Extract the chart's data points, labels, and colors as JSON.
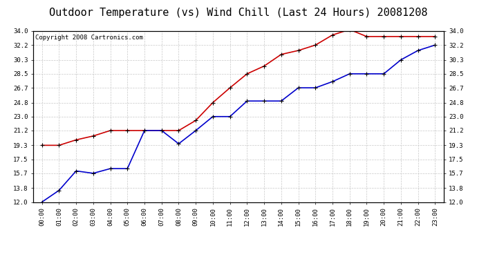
{
  "title": "Outdoor Temperature (vs) Wind Chill (Last 24 Hours) 20081208",
  "copyright": "Copyright 2008 Cartronics.com",
  "x_labels": [
    "00:00",
    "01:00",
    "02:00",
    "03:00",
    "04:00",
    "05:00",
    "06:00",
    "07:00",
    "08:00",
    "09:00",
    "10:00",
    "11:00",
    "12:00",
    "13:00",
    "14:00",
    "15:00",
    "16:00",
    "17:00",
    "18:00",
    "19:00",
    "20:00",
    "21:00",
    "22:00",
    "23:00"
  ],
  "red_data": [
    19.3,
    19.3,
    20.0,
    20.5,
    21.2,
    21.2,
    21.2,
    21.2,
    21.2,
    22.5,
    24.8,
    26.7,
    28.5,
    29.5,
    31.0,
    31.5,
    32.2,
    33.5,
    34.2,
    33.3,
    33.3,
    33.3,
    33.3,
    33.3
  ],
  "blue_data": [
    12.0,
    13.5,
    16.0,
    15.7,
    16.3,
    16.3,
    21.2,
    21.2,
    19.5,
    21.2,
    23.0,
    23.0,
    25.0,
    25.0,
    25.0,
    26.7,
    26.7,
    27.5,
    28.5,
    28.5,
    28.5,
    30.3,
    31.5,
    32.2
  ],
  "ylim": [
    12.0,
    34.0
  ],
  "yticks": [
    12.0,
    13.8,
    15.7,
    17.5,
    19.3,
    21.2,
    23.0,
    24.8,
    26.7,
    28.5,
    30.3,
    32.2,
    34.0
  ],
  "background_color": "#ffffff",
  "plot_bg_color": "#ffffff",
  "grid_color": "#c8c8c8",
  "red_color": "#cc0000",
  "blue_color": "#0000cc",
  "title_fontsize": 11,
  "copyright_fontsize": 6.5
}
